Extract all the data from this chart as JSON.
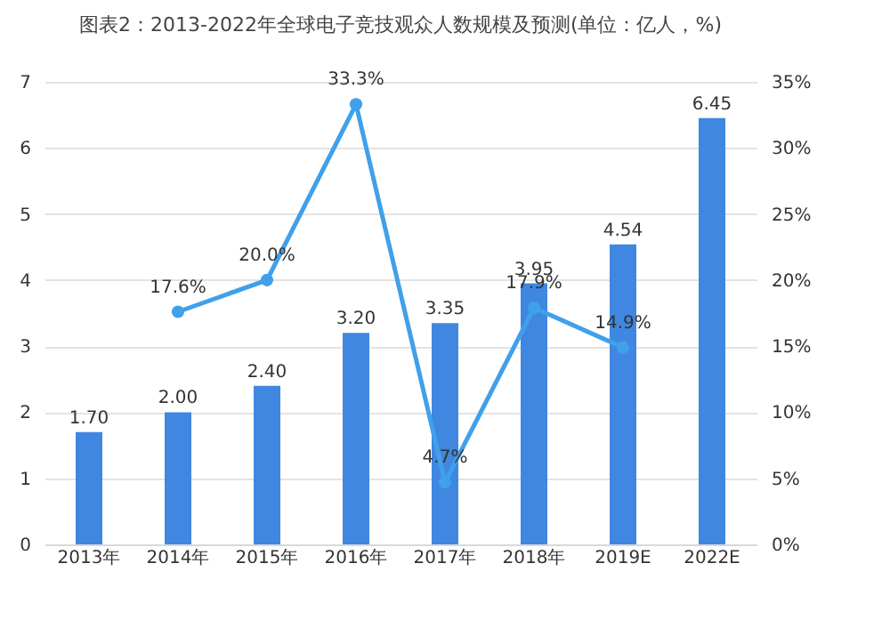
{
  "chart_data": {
    "type": "bar",
    "title": "图表2：2013-2022年全球电子竞技观众人数规模及预测(单位：亿人，%)",
    "categories": [
      "2013年",
      "2014年",
      "2015年",
      "2016年",
      "2017年",
      "2018年",
      "2019E",
      "2022E"
    ],
    "series": [
      {
        "color": "#3f87e0",
        "values": [
          1.7,
          2.0,
          2.4,
          3.2,
          3.35,
          3.95,
          4.54,
          6.45
        ],
        "value_labels": [
          "1.70",
          "2.00",
          "2.40",
          "3.20",
          "3.35",
          "3.95",
          "4.54",
          "6.45"
        ]
      },
      {
        "type": "line",
        "axis": "y2",
        "color": "#40a0ea",
        "marker": "circle",
        "values": [
          null,
          17.6,
          20.0,
          33.3,
          4.7,
          17.9,
          14.9,
          null
        ],
        "value_labels": [
          null,
          "17.6%",
          "20.0%",
          "33.3%",
          "4.7%",
          "17.9%",
          "14.9%",
          null
        ]
      }
    ],
    "ylim": [
      0,
      7
    ],
    "yticks": [
      0,
      1,
      2,
      3,
      4,
      5,
      6,
      7
    ],
    "y2lim": [
      0,
      35
    ],
    "y2ticks": [
      {
        "value": 0,
        "label": "0%"
      },
      {
        "value": 5,
        "label": "5%"
      },
      {
        "value": 10,
        "label": "10%"
      },
      {
        "value": 15,
        "label": "15%"
      },
      {
        "value": 20,
        "label": "20%"
      },
      {
        "value": 25,
        "label": "25%"
      },
      {
        "value": 30,
        "label": "30%"
      },
      {
        "value": 35,
        "label": "35%"
      }
    ],
    "grid": "y"
  }
}
